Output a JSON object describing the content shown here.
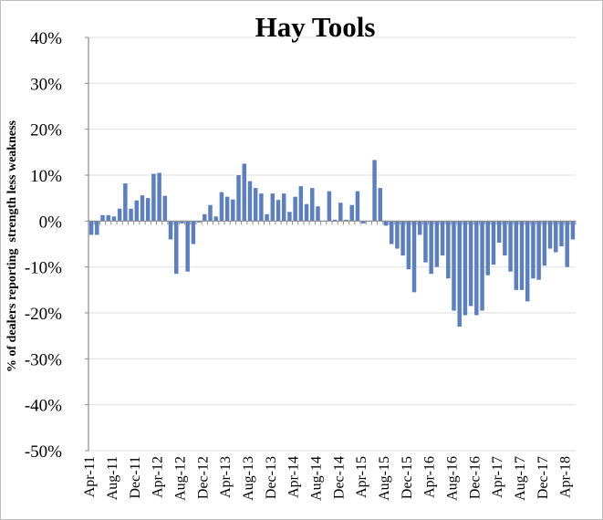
{
  "chart_data": {
    "type": "bar",
    "title": "Hay Tools",
    "xlabel": "",
    "ylabel": "% of dealers reporting  strength less weakness",
    "ylim": [
      -50,
      40
    ],
    "yticks": [
      40,
      30,
      20,
      10,
      0,
      -10,
      -20,
      -30,
      -40,
      -50
    ],
    "ytick_labels": [
      "40%",
      "30%",
      "20%",
      "10%",
      "0%",
      "-10%",
      "-20%",
      "-30%",
      "-40%",
      "-50%"
    ],
    "grid": true,
    "legend": "none",
    "bar_color": "#5b7fc0",
    "x_tick_every": 4,
    "x_tick_labels": [
      "Apr-11",
      "Aug-11",
      "Dec-11",
      "Apr-12",
      "Aug-12",
      "Dec-12",
      "Apr-13",
      "Aug-13",
      "Dec-13",
      "Apr-14",
      "Aug-14",
      "Dec-14",
      "Apr-15",
      "Aug-15",
      "Dec-15",
      "Apr-16",
      "Aug-16",
      "Dec-16",
      "Apr-17",
      "Aug-17",
      "Dec-17",
      "Apr-18"
    ],
    "values": [
      -3,
      -3,
      1.3,
      1.3,
      1,
      2.7,
      8.2,
      2.7,
      4.5,
      5.6,
      5,
      10.3,
      10.5,
      5.5,
      -4,
      -11.5,
      -0.5,
      -11,
      -5,
      -0.3,
      1.5,
      3.5,
      1,
      6.3,
      5.3,
      4.7,
      10,
      12.5,
      8.7,
      7.2,
      6,
      1.5,
      6,
      4.6,
      6,
      2,
      5.3,
      7.6,
      3.7,
      7.2,
      3.2,
      0,
      6.5,
      0.3,
      4,
      0.3,
      3.5,
      6.5,
      -0.5,
      0,
      13.3,
      7.2,
      -1,
      -5,
      -6,
      -7.5,
      -10.5,
      -15.5,
      -3,
      -9,
      -11.5,
      -10,
      -7.5,
      -12.5,
      -19.5,
      -23,
      -20.5,
      -18.5,
      -20.5,
      -19.5,
      -11.8,
      -9.5,
      -4.7,
      -7.5,
      -11,
      -15,
      -15,
      -17.5,
      -12.5,
      -12.8,
      -9.7,
      -6,
      -6.8,
      -5.5,
      -10,
      -4
    ]
  }
}
